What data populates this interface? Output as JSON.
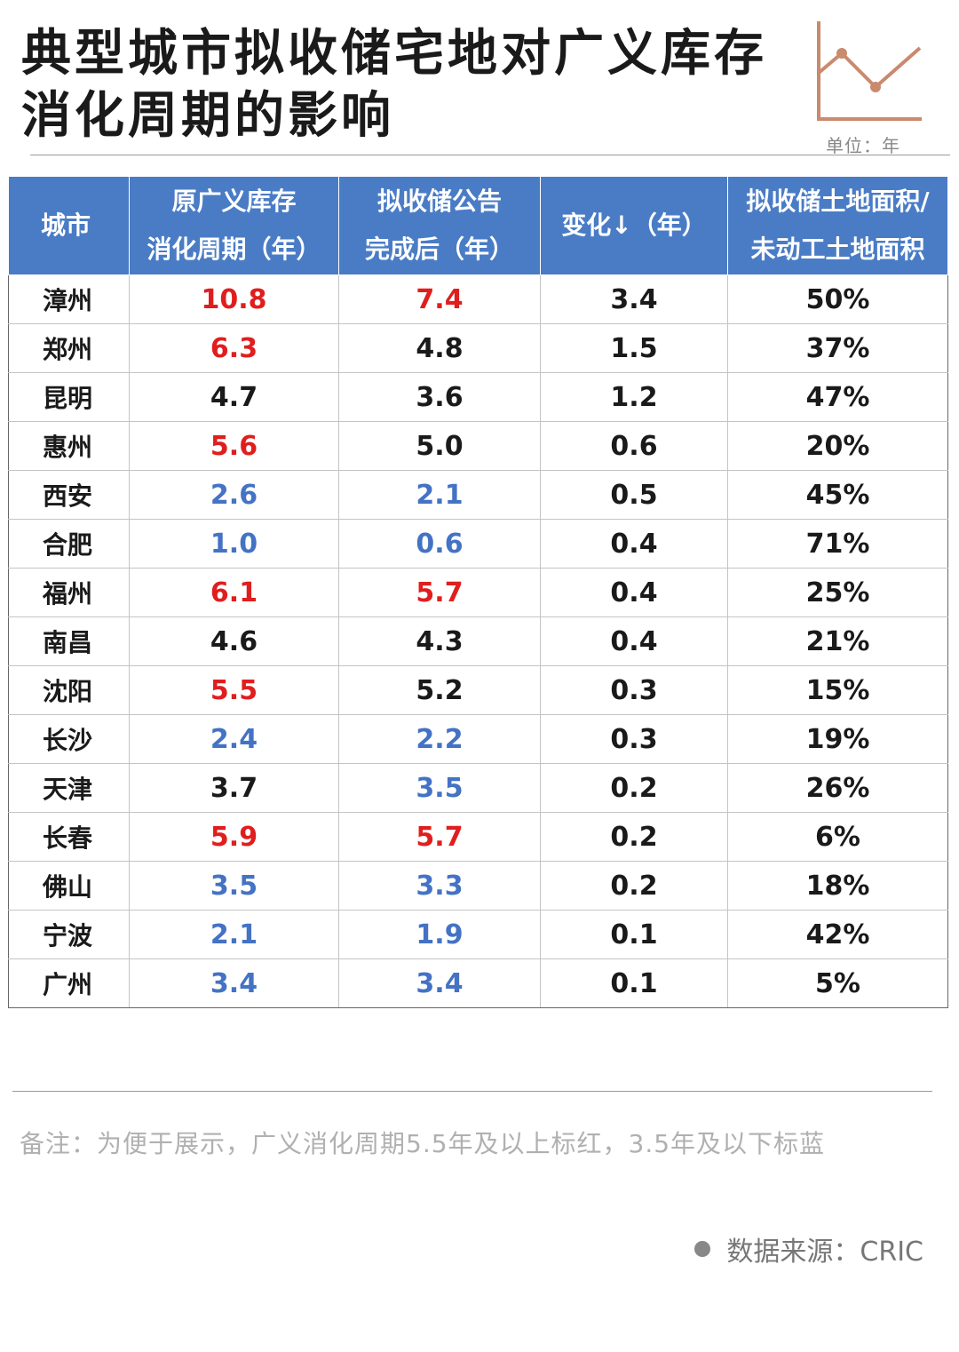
{
  "title": "典型城市拟收储宅地对广义库存消化周期的影响",
  "unit": "单位：年",
  "note": "备注：为便于展示，广义消化周期5.5年及以上标红，3.5年及以下标蓝",
  "source": "数据来源：CRIC",
  "colors": {
    "header_bg": "#4a7cc6",
    "red": "#e01e1e",
    "blue": "#4472c4",
    "logo": "#c98a6e"
  },
  "icon": "line-chart-icon",
  "chart_data": {
    "type": "table",
    "columns": [
      "城市",
      "原广义库存\n消化周期（年）",
      "拟收储公告\n完成后（年）",
      "变化↓（年）",
      "拟收储土地面积/\n未动工土地面积"
    ],
    "rows": [
      {
        "city": "漳州",
        "original": "10.8",
        "after": "7.4",
        "change": "3.4",
        "ratio": "50%",
        "original_color": "red",
        "after_color": "red"
      },
      {
        "city": "郑州",
        "original": "6.3",
        "after": "4.8",
        "change": "1.5",
        "ratio": "37%",
        "original_color": "red",
        "after_color": ""
      },
      {
        "city": "昆明",
        "original": "4.7",
        "after": "3.6",
        "change": "1.2",
        "ratio": "47%",
        "original_color": "",
        "after_color": ""
      },
      {
        "city": "惠州",
        "original": "5.6",
        "after": "5.0",
        "change": "0.6",
        "ratio": "20%",
        "original_color": "red",
        "after_color": ""
      },
      {
        "city": "西安",
        "original": "2.6",
        "after": "2.1",
        "change": "0.5",
        "ratio": "45%",
        "original_color": "blue",
        "after_color": "blue"
      },
      {
        "city": "合肥",
        "original": "1.0",
        "after": "0.6",
        "change": "0.4",
        "ratio": "71%",
        "original_color": "blue",
        "after_color": "blue"
      },
      {
        "city": "福州",
        "original": "6.1",
        "after": "5.7",
        "change": "0.4",
        "ratio": "25%",
        "original_color": "red",
        "after_color": "red"
      },
      {
        "city": "南昌",
        "original": "4.6",
        "after": "4.3",
        "change": "0.4",
        "ratio": "21%",
        "original_color": "",
        "after_color": ""
      },
      {
        "city": "沈阳",
        "original": "5.5",
        "after": "5.2",
        "change": "0.3",
        "ratio": "15%",
        "original_color": "red",
        "after_color": ""
      },
      {
        "city": "长沙",
        "original": "2.4",
        "after": "2.2",
        "change": "0.3",
        "ratio": "19%",
        "original_color": "blue",
        "after_color": "blue"
      },
      {
        "city": "天津",
        "original": "3.7",
        "after": "3.5",
        "change": "0.2",
        "ratio": "26%",
        "original_color": "",
        "after_color": "blue"
      },
      {
        "city": "长春",
        "original": "5.9",
        "after": "5.7",
        "change": "0.2",
        "ratio": "6%",
        "original_color": "red",
        "after_color": "red"
      },
      {
        "city": "佛山",
        "original": "3.5",
        "after": "3.3",
        "change": "0.2",
        "ratio": "18%",
        "original_color": "blue",
        "after_color": "blue"
      },
      {
        "city": "宁波",
        "original": "2.1",
        "after": "1.9",
        "change": "0.1",
        "ratio": "42%",
        "original_color": "blue",
        "after_color": "blue"
      },
      {
        "city": "广州",
        "original": "3.4",
        "after": "3.4",
        "change": "0.1",
        "ratio": "5%",
        "original_color": "blue",
        "after_color": "blue"
      }
    ]
  }
}
